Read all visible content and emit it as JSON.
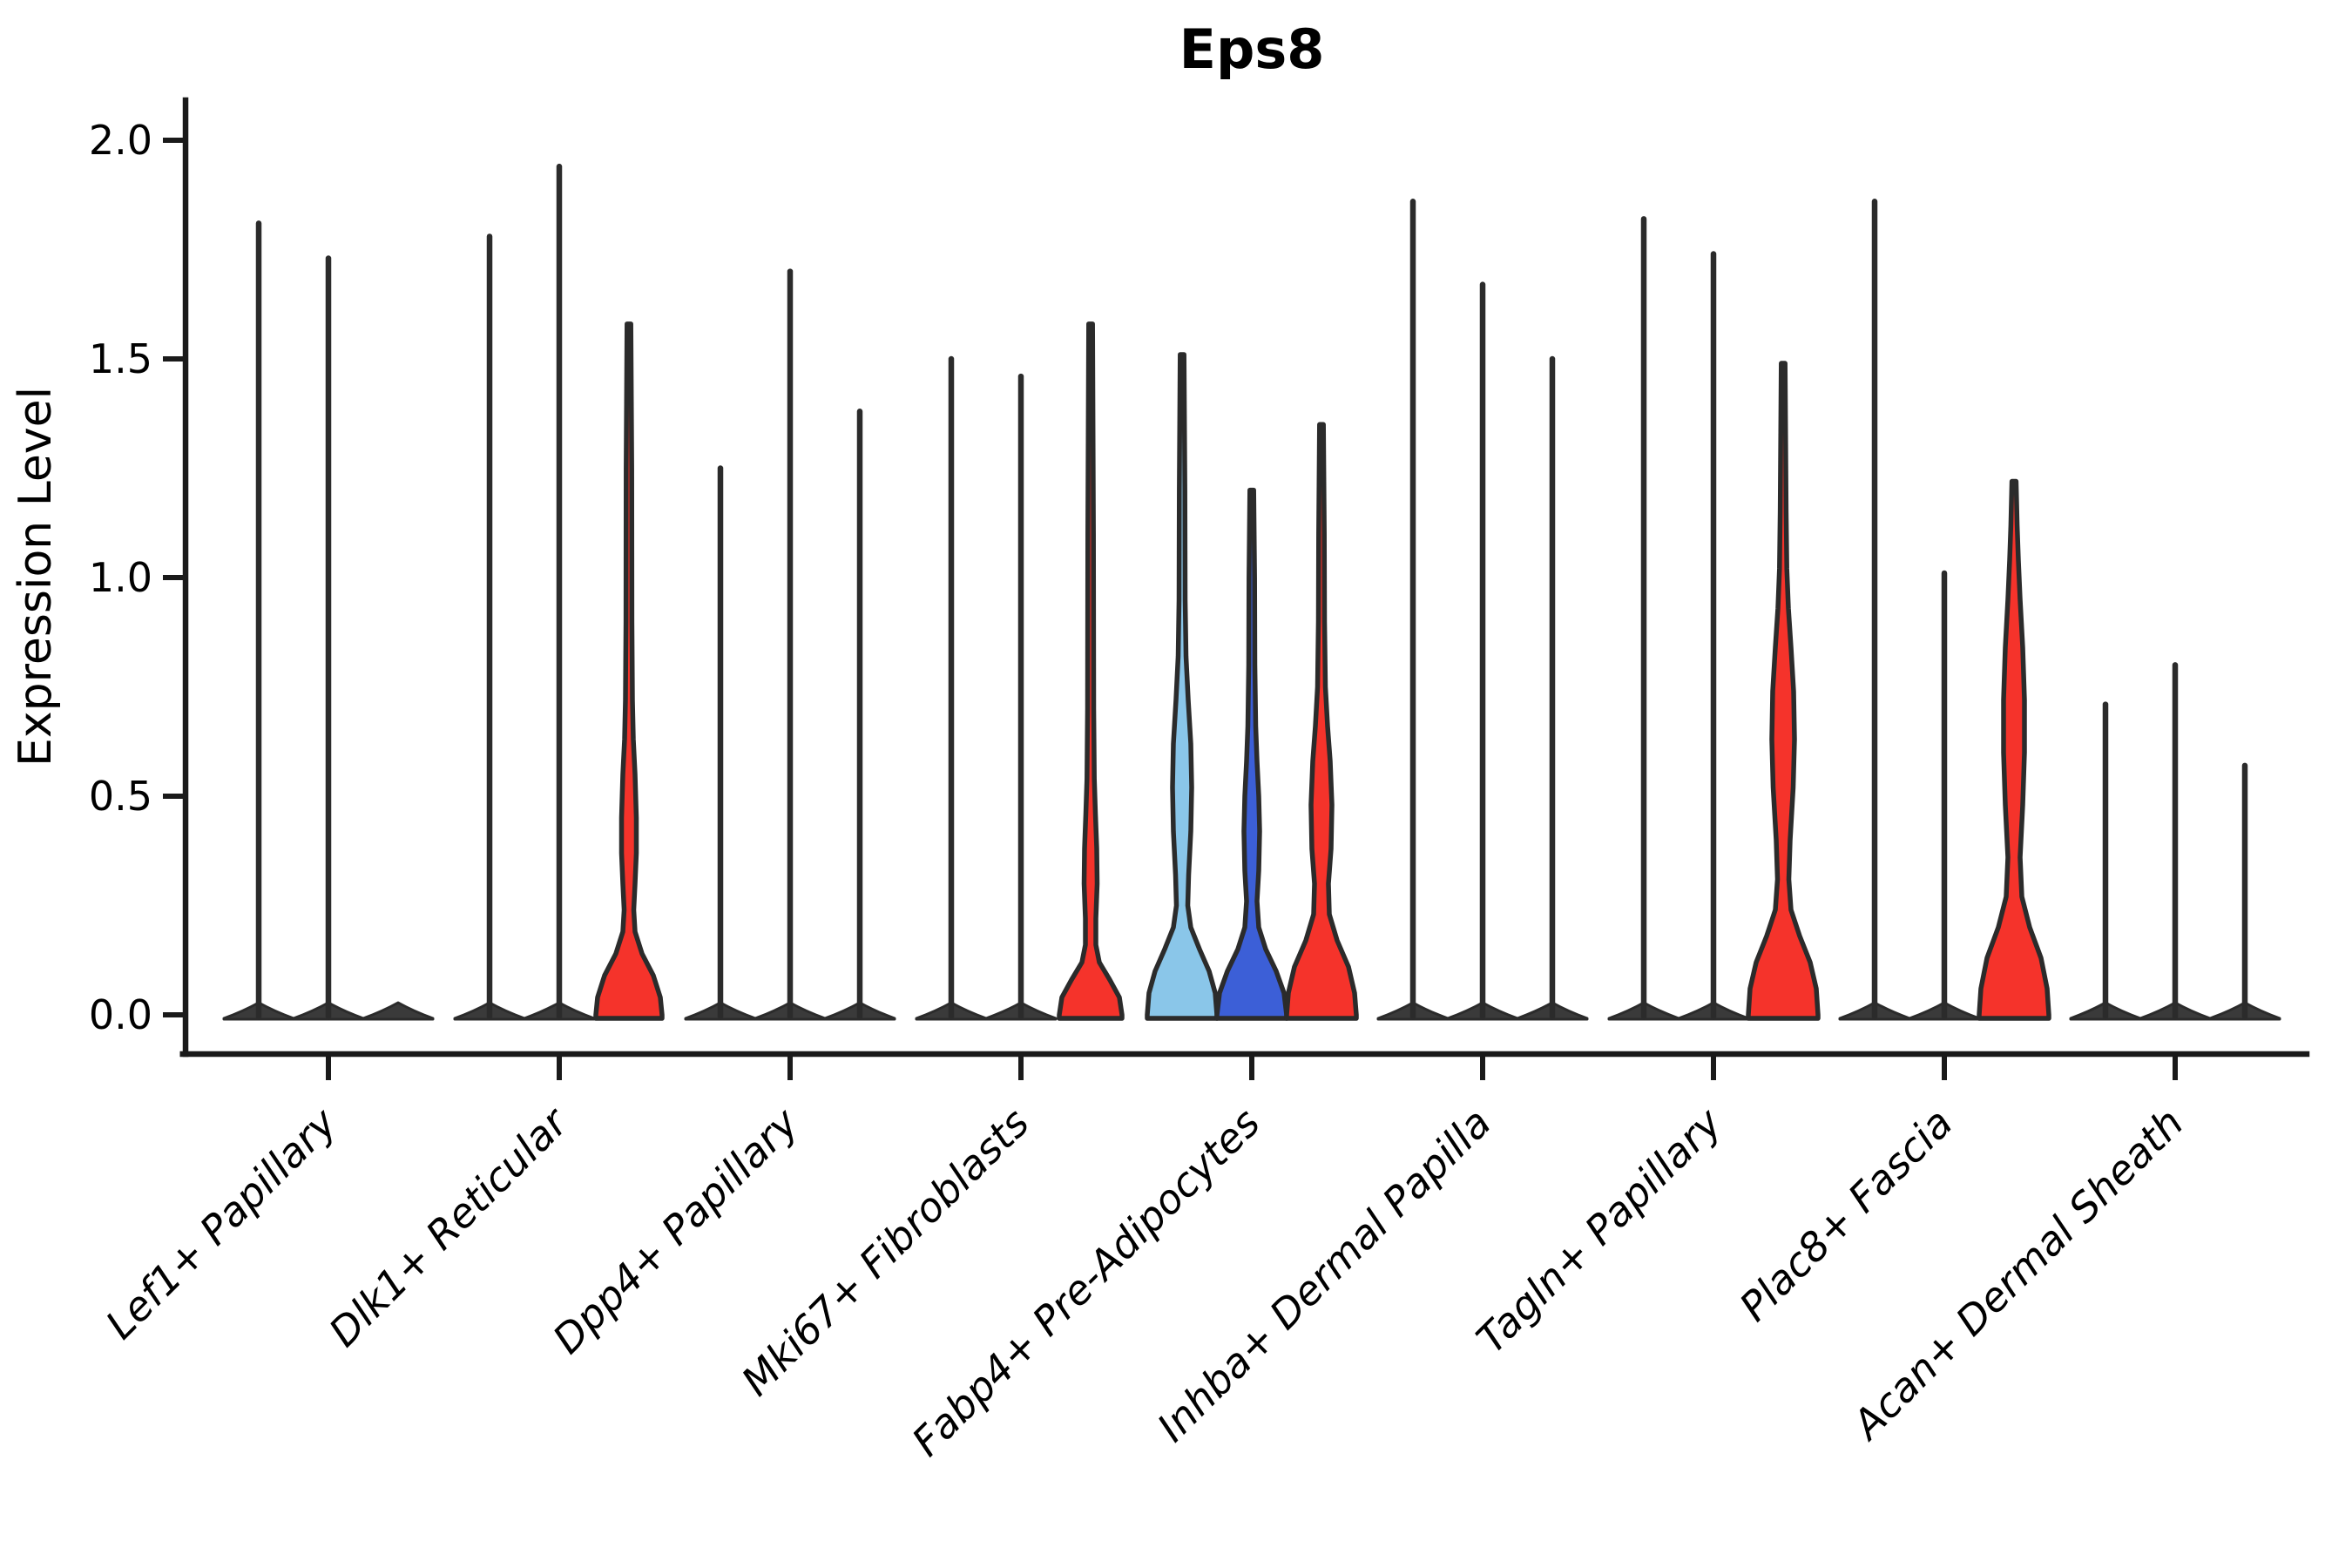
{
  "chart_data": {
    "type": "violin",
    "title": "Eps8",
    "xlabel": "",
    "ylabel": "Expression Level",
    "ylim": [
      0.0,
      2.0
    ],
    "yticks": [
      "0.0",
      "0.5",
      "1.0",
      "1.5",
      "2.0"
    ],
    "ytick_values": [
      0.0,
      0.5,
      1.0,
      1.5,
      2.0
    ],
    "grid": false,
    "legend": "none",
    "violins_per_category": 3,
    "colors": {
      "outline": "#2b2b2b",
      "axis": "#1a1a1a",
      "collapsed_violin": "#3a3a3a",
      "red": "#f5332b",
      "light_blue": "#8ac6e9",
      "royal_blue": "#3c5fd7",
      "background": "#ffffff"
    },
    "categories": [
      "Lef1+ Papillary",
      "Dlk1+ Reticular",
      "Dpp4+ Papillary",
      "Mki67+ Fibroblasts",
      "Fabp4+ Pre-Adipocytes",
      "Inhba+ Dermal Papilla",
      "Tagln+ Papillary",
      "Plac8+ Fascia",
      "Acan+ Dermal Sheath"
    ],
    "groups": [
      {
        "label": "Lef1+ Papillary",
        "violins": [
          {
            "max": 1.81,
            "color": "#3a3a3a",
            "shape": "spike"
          },
          {
            "max": 1.73,
            "color": "#3a3a3a",
            "shape": "spike"
          },
          {
            "max": 0.02,
            "color": "#3a3a3a",
            "shape": "base"
          }
        ]
      },
      {
        "label": "Dlk1+ Reticular",
        "violins": [
          {
            "max": 1.78,
            "color": "#3a3a3a",
            "shape": "spike"
          },
          {
            "max": 1.94,
            "color": "#3a3a3a",
            "shape": "spike"
          },
          {
            "max": 1.58,
            "color": "#f5332b",
            "shape": "kde",
            "profile": [
              [
                0,
                38
              ],
              [
                0.04,
                36
              ],
              [
                0.09,
                28
              ],
              [
                0.14,
                15
              ],
              [
                0.19,
                7
              ],
              [
                0.24,
                5.5
              ],
              [
                0.3,
                7
              ],
              [
                0.37,
                8.5
              ],
              [
                0.45,
                8.5
              ],
              [
                0.55,
                7
              ],
              [
                0.63,
                5
              ],
              [
                0.72,
                4
              ],
              [
                0.9,
                3.4
              ],
              [
                1.25,
                3.2
              ],
              [
                1.58,
                2.2
              ]
            ]
          }
        ]
      },
      {
        "label": "Dpp4+ Papillary",
        "violins": [
          {
            "max": 1.25,
            "color": "#3a3a3a",
            "shape": "spike"
          },
          {
            "max": 1.7,
            "color": "#3a3a3a",
            "shape": "spike"
          },
          {
            "max": 1.38,
            "color": "#3a3a3a",
            "shape": "spike"
          }
        ]
      },
      {
        "label": "Mki67+ Fibroblasts",
        "violins": [
          {
            "max": 1.5,
            "color": "#3a3a3a",
            "shape": "spike"
          },
          {
            "max": 1.46,
            "color": "#3a3a3a",
            "shape": "spike"
          },
          {
            "max": 1.58,
            "color": "#f5332b",
            "shape": "kde",
            "profile": [
              [
                0,
                36
              ],
              [
                0.04,
                33
              ],
              [
                0.08,
                22
              ],
              [
                0.12,
                10
              ],
              [
                0.16,
                6
              ],
              [
                0.22,
                6
              ],
              [
                0.3,
                7.5
              ],
              [
                0.38,
                7
              ],
              [
                0.46,
                5.5
              ],
              [
                0.54,
                4.2
              ],
              [
                0.7,
                3.5
              ],
              [
                1.1,
                3.2
              ],
              [
                1.58,
                2.2
              ]
            ]
          }
        ]
      },
      {
        "label": "Fabp4+ Pre-Adipocytes",
        "violins": [
          {
            "max": 1.51,
            "color": "#8ac6e9",
            "shape": "kde",
            "profile": [
              [
                0,
                40
              ],
              [
                0.05,
                38
              ],
              [
                0.1,
                31
              ],
              [
                0.15,
                20
              ],
              [
                0.2,
                10
              ],
              [
                0.25,
                6.5
              ],
              [
                0.32,
                7.5
              ],
              [
                0.42,
                10
              ],
              [
                0.52,
                11
              ],
              [
                0.62,
                10
              ],
              [
                0.72,
                7
              ],
              [
                0.82,
                4.5
              ],
              [
                0.95,
                3.5
              ],
              [
                1.2,
                3.2
              ],
              [
                1.51,
                2.2
              ]
            ]
          },
          {
            "max": 1.2,
            "color": "#3c5fd7",
            "shape": "kde",
            "profile": [
              [
                0,
                40
              ],
              [
                0.05,
                37
              ],
              [
                0.1,
                28
              ],
              [
                0.15,
                16
              ],
              [
                0.2,
                8
              ],
              [
                0.26,
                6
              ],
              [
                0.33,
                8
              ],
              [
                0.42,
                9
              ],
              [
                0.5,
                8
              ],
              [
                0.58,
                6
              ],
              [
                0.66,
                4.5
              ],
              [
                0.8,
                3.5
              ],
              [
                1.0,
                3.2
              ],
              [
                1.2,
                2.2
              ]
            ]
          },
          {
            "max": 1.35,
            "color": "#f5332b",
            "shape": "kde",
            "profile": [
              [
                0,
                40
              ],
              [
                0.05,
                38
              ],
              [
                0.11,
                31
              ],
              [
                0.17,
                18
              ],
              [
                0.23,
                9
              ],
              [
                0.3,
                8
              ],
              [
                0.38,
                11
              ],
              [
                0.48,
                12
              ],
              [
                0.58,
                10
              ],
              [
                0.66,
                7
              ],
              [
                0.75,
                4.5
              ],
              [
                0.9,
                3.5
              ],
              [
                1.1,
                3.2
              ],
              [
                1.35,
                2.2
              ]
            ]
          }
        ]
      },
      {
        "label": "Inhba+ Dermal Papilla",
        "violins": [
          {
            "max": 1.86,
            "color": "#3a3a3a",
            "shape": "spike"
          },
          {
            "max": 1.67,
            "color": "#3a3a3a",
            "shape": "spike"
          },
          {
            "max": 1.5,
            "color": "#3a3a3a",
            "shape": "spike"
          }
        ]
      },
      {
        "label": "Tagln+ Papillary",
        "violins": [
          {
            "max": 1.82,
            "color": "#3a3a3a",
            "shape": "spike"
          },
          {
            "max": 1.74,
            "color": "#3a3a3a",
            "shape": "spike"
          },
          {
            "max": 1.49,
            "color": "#f5332b",
            "shape": "kde",
            "profile": [
              [
                0,
                40
              ],
              [
                0.06,
                38
              ],
              [
                0.12,
                31
              ],
              [
                0.18,
                19
              ],
              [
                0.24,
                9
              ],
              [
                0.31,
                6.5
              ],
              [
                0.4,
                8
              ],
              [
                0.52,
                11.5
              ],
              [
                0.63,
                13
              ],
              [
                0.74,
                12
              ],
              [
                0.84,
                9
              ],
              [
                0.93,
                6
              ],
              [
                1.02,
                4.2
              ],
              [
                1.15,
                3.4
              ],
              [
                1.49,
                2.2
              ]
            ]
          }
        ]
      },
      {
        "label": "Plac8+ Fascia",
        "violins": [
          {
            "max": 1.86,
            "color": "#3a3a3a",
            "shape": "spike"
          },
          {
            "max": 1.01,
            "color": "#3a3a3a",
            "shape": "spike"
          },
          {
            "max": 1.22,
            "color": "#f5332b",
            "shape": "kde",
            "profile": [
              [
                0,
                40
              ],
              [
                0.06,
                38
              ],
              [
                0.13,
                31
              ],
              [
                0.2,
                18
              ],
              [
                0.27,
                9
              ],
              [
                0.36,
                7
              ],
              [
                0.48,
                10
              ],
              [
                0.6,
                12
              ],
              [
                0.72,
                12
              ],
              [
                0.84,
                10
              ],
              [
                0.95,
                7
              ],
              [
                1.04,
                5
              ],
              [
                1.12,
                3.6
              ],
              [
                1.22,
                2.4
              ]
            ]
          }
        ]
      },
      {
        "label": "Acan+ Dermal Sheath",
        "violins": [
          {
            "max": 0.71,
            "color": "#3a3a3a",
            "shape": "spike"
          },
          {
            "max": 0.8,
            "color": "#3a3a3a",
            "shape": "spike"
          },
          {
            "max": 0.57,
            "color": "#3a3a3a",
            "shape": "spike"
          }
        ]
      }
    ]
  }
}
